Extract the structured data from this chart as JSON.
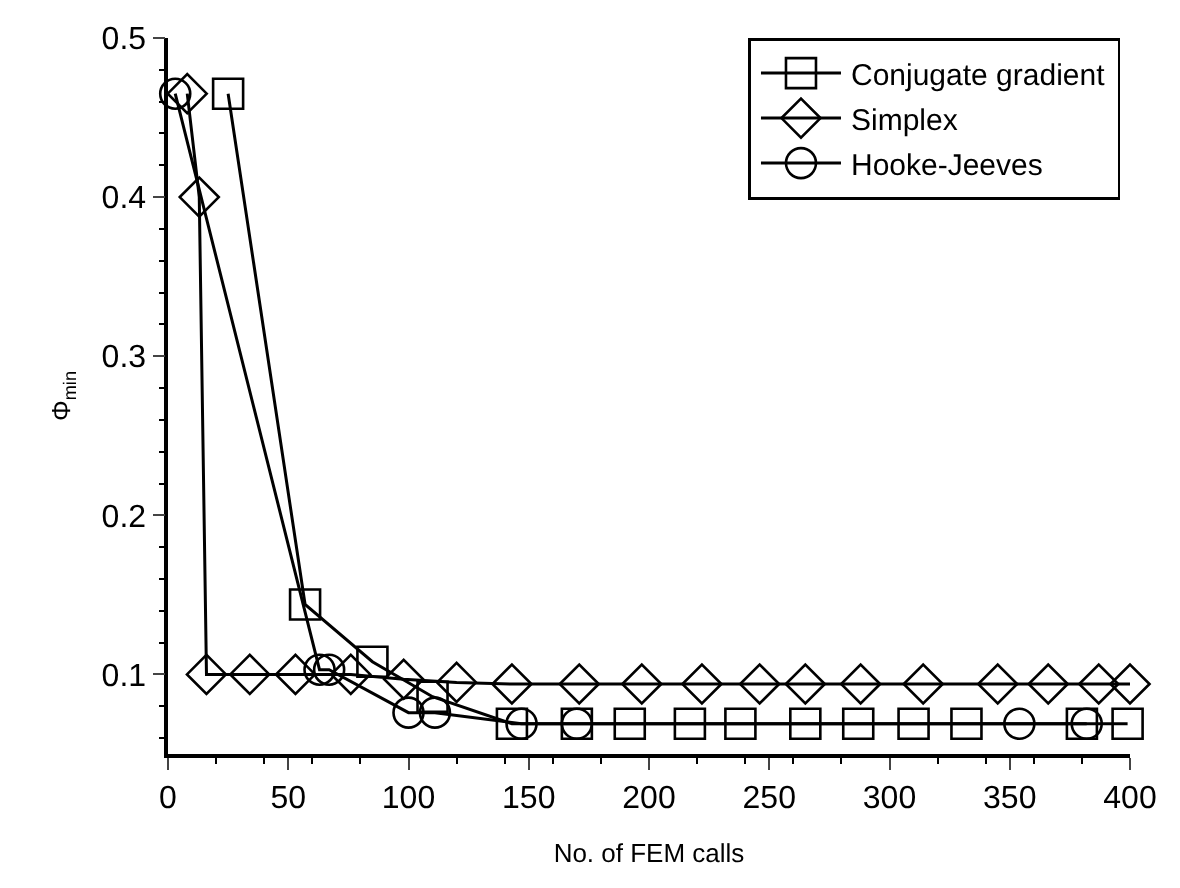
{
  "chart_data": {
    "type": "line",
    "xlabel": "No. of FEM calls",
    "ylabel": "Φ$_{min}$",
    "xlim": [
      0,
      400
    ],
    "xticks": [
      0,
      50,
      100,
      150,
      200,
      250,
      300,
      350,
      400
    ],
    "ylim": [
      0.05,
      0.5
    ],
    "yticks": [
      0.1,
      0.2,
      0.3,
      0.4,
      0.5
    ],
    "legend": "top right",
    "series": [
      {
        "name": "Conjugate gradient",
        "color": "#000000",
        "marker": "square",
        "x": [
          25,
          57,
          85,
          110,
          143,
          170,
          192,
          217,
          238,
          265,
          287,
          310,
          332,
          380,
          399
        ],
        "values": [
          0.465,
          0.144,
          0.108,
          0.086,
          0.069,
          0.069,
          0.069,
          0.069,
          0.069,
          0.069,
          0.069,
          0.069,
          0.069,
          0.069,
          0.069
        ]
      },
      {
        "name": "Simplex",
        "color": "#000000",
        "marker": "diamond",
        "x": [
          8,
          13,
          16,
          34,
          53,
          76,
          98,
          120,
          143,
          171,
          197,
          222,
          246,
          265,
          288,
          314,
          345,
          366,
          387,
          400
        ],
        "values": [
          0.465,
          0.4,
          0.1,
          0.1,
          0.1,
          0.1,
          0.097,
          0.095,
          0.094,
          0.094,
          0.094,
          0.094,
          0.094,
          0.094,
          0.094,
          0.094,
          0.094,
          0.094,
          0.094,
          0.094
        ]
      },
      {
        "name": "Hooke-Jeeves",
        "color": "#000000",
        "marker": "circle",
        "x": [
          3,
          63,
          67,
          100,
          111,
          147,
          170,
          354,
          382
        ],
        "values": [
          0.465,
          0.103,
          0.103,
          0.076,
          0.076,
          0.069,
          0.069,
          0.069,
          0.069
        ]
      }
    ]
  }
}
